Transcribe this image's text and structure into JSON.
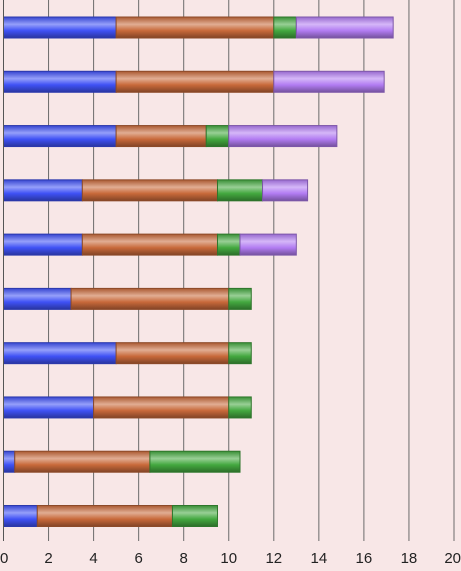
{
  "chart_data": {
    "type": "bar",
    "orientation": "horizontal",
    "stacked": true,
    "xlim": [
      0,
      20
    ],
    "x_ticks": [
      "0",
      "2",
      "4",
      "6",
      "8",
      "10",
      "12",
      "14",
      "16",
      "18",
      "20"
    ],
    "grid": "vertical",
    "legend": "none",
    "background_color": "#f8e7e7",
    "series": [
      {
        "color": "#3f51f5",
        "values": [
          5,
          5,
          5,
          3.5,
          3.5,
          3,
          5,
          4,
          0.5,
          1.5
        ]
      },
      {
        "color": "#c8693a",
        "values": [
          7,
          7,
          4,
          6,
          6,
          7,
          5,
          6,
          6,
          6
        ]
      },
      {
        "color": "#43a83f",
        "values": [
          1,
          0,
          1,
          2,
          1,
          1,
          1,
          1,
          4,
          2
        ]
      },
      {
        "color": "#b27cf2",
        "values": [
          4.3,
          4.9,
          4.8,
          2,
          2.5,
          0,
          0,
          0,
          0,
          0
        ]
      }
    ]
  }
}
